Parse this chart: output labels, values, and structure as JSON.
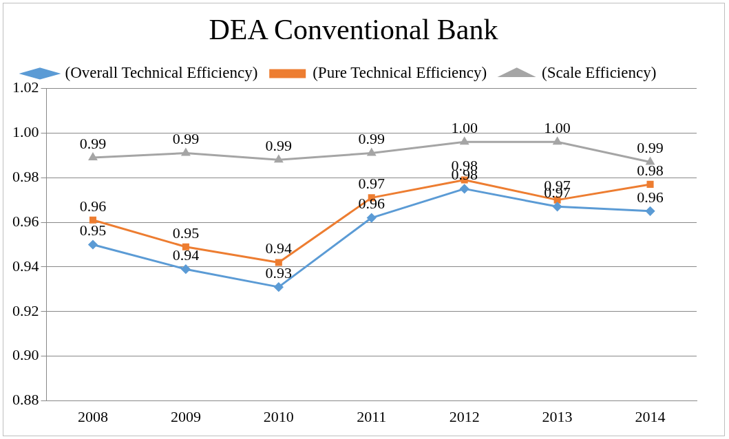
{
  "chart_data": {
    "type": "line",
    "title": "DEA Conventional Bank",
    "categories": [
      "2008",
      "2009",
      "2010",
      "2011",
      "2012",
      "2013",
      "2014"
    ],
    "series": [
      {
        "name": "(Overall Technical Efficiency)",
        "color": "#5b9bd5",
        "marker": "diamond",
        "values": [
          0.95,
          0.939,
          0.931,
          0.962,
          0.975,
          0.967,
          0.965
        ],
        "value_labels": [
          "0.95",
          "0.94",
          "0.93",
          "0.96",
          "0.98",
          "0.97",
          "0.96"
        ]
      },
      {
        "name": "(Pure Technical Efficiency)",
        "color": "#ed7d31",
        "marker": "square",
        "values": [
          0.961,
          0.949,
          0.942,
          0.971,
          0.979,
          0.97,
          0.977
        ],
        "value_labels": [
          "0.96",
          "0.95",
          "0.94",
          "0.97",
          "0.98",
          "0.97",
          "0.98"
        ]
      },
      {
        "name": "(Scale Efficiency)",
        "color": "#a5a5a5",
        "marker": "triangle",
        "values": [
          0.989,
          0.991,
          0.988,
          0.991,
          0.996,
          0.996,
          0.987
        ],
        "value_labels": [
          "0.99",
          "0.99",
          "0.99",
          "0.99",
          "1.00",
          "1.00",
          "0.99"
        ]
      }
    ],
    "ylim": [
      0.88,
      1.02
    ],
    "yticks": [
      {
        "value": 0.88,
        "label": "0.88"
      },
      {
        "value": 0.9,
        "label": "0.90"
      },
      {
        "value": 0.92,
        "label": "0.92"
      },
      {
        "value": 0.94,
        "label": "0.94"
      },
      {
        "value": 0.96,
        "label": "0.96"
      },
      {
        "value": 0.98,
        "label": "0.98"
      },
      {
        "value": 1.0,
        "label": "1.00"
      },
      {
        "value": 1.02,
        "label": "1.02"
      }
    ],
    "grid": "y",
    "legend": "top left",
    "line_style": "solid"
  }
}
